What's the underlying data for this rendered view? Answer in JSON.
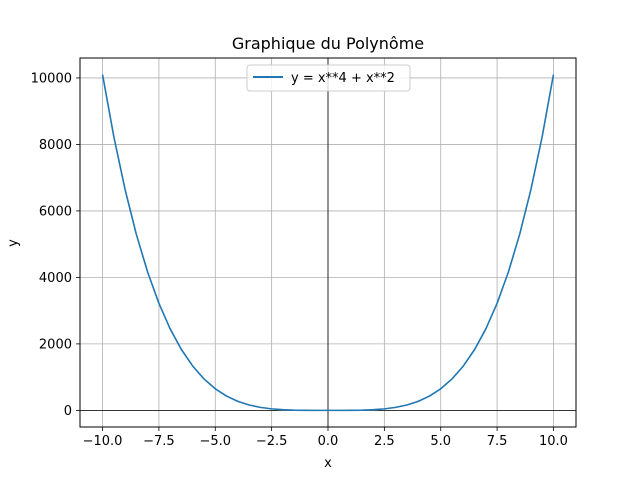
{
  "chart_data": {
    "type": "line",
    "title": "Graphique du Polynôme",
    "xlabel": "x",
    "ylabel": "y",
    "xlim": [
      -11,
      11
    ],
    "ylim": [
      -500,
      10600
    ],
    "xticks": [
      -10.0,
      -7.5,
      -5.0,
      -2.5,
      0.0,
      2.5,
      5.0,
      7.5,
      10.0
    ],
    "xtick_labels": [
      "−10.0",
      "−7.5",
      "−5.0",
      "−2.5",
      "0.0",
      "2.5",
      "5.0",
      "7.5",
      "10.0"
    ],
    "yticks": [
      0,
      2000,
      4000,
      6000,
      8000,
      10000
    ],
    "ytick_labels": [
      "0",
      "2000",
      "4000",
      "6000",
      "8000",
      "10000"
    ],
    "grid": true,
    "legend_position": "upper center",
    "series": [
      {
        "name": "y = x**4 + x**2",
        "color": "#1f77b4",
        "x": [
          -10,
          -9.5,
          -9,
          -8.5,
          -8,
          -7.5,
          -7,
          -6.5,
          -6,
          -5.5,
          -5,
          -4.5,
          -4,
          -3.5,
          -3,
          -2.5,
          -2,
          -1.5,
          -1,
          -0.5,
          0,
          0.5,
          1,
          1.5,
          2,
          2.5,
          3,
          3.5,
          4,
          4.5,
          5,
          5.5,
          6,
          6.5,
          7,
          7.5,
          8,
          8.5,
          9,
          9.5,
          10
        ],
        "y": [
          10100,
          8235.3,
          6642,
          5292.3,
          4160,
          3220.3,
          2450,
          1827.3,
          1332,
          945.3,
          650,
          430.3,
          272,
          162.3,
          90,
          45.3,
          20,
          7.3,
          2,
          0.3,
          0,
          0.3,
          2,
          7.3,
          20,
          45.3,
          90,
          162.3,
          272,
          430.3,
          650,
          945.3,
          1332,
          1827.3,
          2450,
          3220.3,
          4160,
          5292.3,
          6642,
          8235.3,
          10100
        ]
      }
    ]
  }
}
